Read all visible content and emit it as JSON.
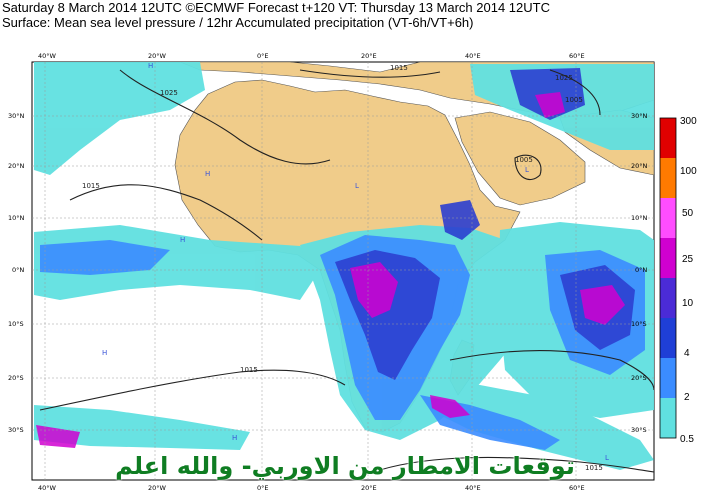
{
  "header": {
    "line1": "Saturday 8 March 2014 12UTC ©ECMWF Forecast t+120 VT: Thursday 13 March 2014 12UTC",
    "line2": "Surface: Mean sea level pressure / 12hr Accumulated precipitation (VT-6h/VT+6h)"
  },
  "map": {
    "lon_ticks": [
      "40°W",
      "20°W",
      "0°E",
      "20°E",
      "40°E",
      "60°E"
    ],
    "lat_ticks": [
      "30°N",
      "20°N",
      "10°N",
      "0°N",
      "10°S",
      "20°S",
      "30°S"
    ],
    "isobar_labels": [
      "1025",
      "1015",
      "1005",
      "1015",
      "1015",
      "1025",
      "1015",
      "1005"
    ],
    "pressure_centers": [
      "H",
      "H",
      "L",
      "L",
      "H",
      "H",
      "H",
      "L"
    ],
    "colors": {
      "land": "#f0cc8a",
      "ocean": "#ffffff",
      "isobar": "#222222",
      "graticule": "#9a9a9a"
    }
  },
  "colorbar": {
    "levels": [
      "300",
      "100",
      "50",
      "25",
      "10",
      "4",
      "2",
      "0.5"
    ],
    "colors": [
      "#e00000",
      "#ff7a00",
      "#ff4dff",
      "#d000d0",
      "#4b2bd6",
      "#1f3fd6",
      "#3b8cff",
      "#60e0e0"
    ]
  },
  "overlay": {
    "arabic_text": "توقعات الامطار من الاوربي- والله اعلم"
  }
}
